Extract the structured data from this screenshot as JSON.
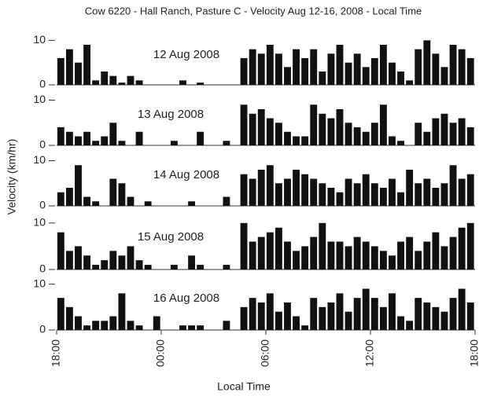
{
  "title": "Cow 6220 - Hall Ranch, Pasture C - Velocity Aug 12-16, 2008 - Local Time",
  "ylabel": "Velocity (km/hr)",
  "xlabel": "Local Time",
  "chart_data": [
    {
      "type": "bar",
      "annotation": "12 Aug 2008",
      "color": "#111111",
      "x": [
        18,
        18.5,
        19,
        19.5,
        20,
        20.5,
        21,
        21.5,
        22,
        22.5,
        23,
        23.5,
        24,
        24.5,
        25,
        25.5,
        26,
        26.5,
        27,
        27.5,
        28,
        28.5,
        29,
        29.5,
        30,
        30.5,
        31,
        31.5,
        32,
        32.5,
        33,
        33.5,
        34,
        34.5,
        35,
        35.5,
        36,
        36.5,
        37,
        37.5,
        38,
        38.5,
        39,
        39.5,
        40,
        40.5,
        41,
        41.5
      ],
      "values": [
        6,
        8,
        5,
        9,
        1,
        3,
        2,
        0.5,
        2,
        1,
        0,
        0,
        0,
        0,
        1,
        0,
        0.5,
        0,
        0,
        0,
        0,
        6,
        8,
        7,
        9,
        7,
        4,
        8,
        6,
        8,
        3,
        7,
        9,
        5,
        7,
        4,
        6,
        9,
        5,
        3,
        1,
        8,
        10,
        7,
        4,
        9,
        8,
        6
      ],
      "xlim": [
        18,
        42
      ],
      "ylim": [
        0,
        12
      ],
      "yticks": [
        0,
        10
      ]
    },
    {
      "type": "bar",
      "annotation": "13 Aug 2008",
      "color": "#111111",
      "x": [
        18,
        18.5,
        19,
        19.5,
        20,
        20.5,
        21,
        21.5,
        22,
        22.5,
        23,
        23.5,
        24,
        24.5,
        25,
        25.5,
        26,
        26.5,
        27,
        27.5,
        28,
        28.5,
        29,
        29.5,
        30,
        30.5,
        31,
        31.5,
        32,
        32.5,
        33,
        33.5,
        34,
        34.5,
        35,
        35.5,
        36,
        36.5,
        37,
        37.5,
        38,
        38.5,
        39,
        39.5,
        40,
        40.5,
        41,
        41.5
      ],
      "values": [
        4,
        3,
        2,
        3,
        1,
        2,
        5,
        1,
        0,
        3,
        0,
        0,
        0,
        1,
        0,
        0,
        3,
        0,
        0,
        1,
        0,
        9,
        7,
        8,
        6,
        5,
        3,
        2,
        2,
        9,
        7,
        6,
        8,
        5,
        4,
        3,
        5,
        9,
        2,
        1,
        0,
        5,
        3,
        6,
        7,
        5,
        6,
        4
      ],
      "xlim": [
        18,
        42
      ],
      "ylim": [
        0,
        12
      ],
      "yticks": [
        0,
        10
      ]
    },
    {
      "type": "bar",
      "annotation": "14 Aug 2008",
      "color": "#111111",
      "x": [
        18,
        18.5,
        19,
        19.5,
        20,
        20.5,
        21,
        21.5,
        22,
        22.5,
        23,
        23.5,
        24,
        24.5,
        25,
        25.5,
        26,
        26.5,
        27,
        27.5,
        28,
        28.5,
        29,
        29.5,
        30,
        30.5,
        31,
        31.5,
        32,
        32.5,
        33,
        33.5,
        34,
        34.5,
        35,
        35.5,
        36,
        36.5,
        37,
        37.5,
        38,
        38.5,
        39,
        39.5,
        40,
        40.5,
        41,
        41.5
      ],
      "values": [
        3,
        4,
        9,
        2,
        1,
        0,
        6,
        5,
        2,
        0,
        1,
        0,
        0,
        0,
        0,
        1,
        0,
        0,
        0,
        2,
        0,
        7,
        6,
        8,
        9,
        5,
        6,
        8,
        7,
        6,
        5,
        4,
        3,
        6,
        5,
        7,
        5,
        4,
        6,
        3,
        8,
        5,
        6,
        4,
        5,
        9,
        6,
        7
      ],
      "xlim": [
        18,
        42
      ],
      "ylim": [
        0,
        12
      ],
      "yticks": [
        0,
        10
      ]
    },
    {
      "type": "bar",
      "annotation": "15 Aug 2008",
      "color": "#111111",
      "x": [
        18,
        18.5,
        19,
        19.5,
        20,
        20.5,
        21,
        21.5,
        22,
        22.5,
        23,
        23.5,
        24,
        24.5,
        25,
        25.5,
        26,
        26.5,
        27,
        27.5,
        28,
        28.5,
        29,
        29.5,
        30,
        30.5,
        31,
        31.5,
        32,
        32.5,
        33,
        33.5,
        34,
        34.5,
        35,
        35.5,
        36,
        36.5,
        37,
        37.5,
        38,
        38.5,
        39,
        39.5,
        40,
        40.5,
        41,
        41.5
      ],
      "values": [
        8,
        4,
        5,
        3,
        1,
        2,
        4,
        3,
        5,
        2,
        1,
        0,
        0,
        1,
        0,
        3,
        1,
        0,
        0,
        1,
        0,
        10,
        6,
        7,
        8,
        9,
        6,
        4,
        5,
        7,
        10,
        6,
        6,
        5,
        7,
        6,
        5,
        4,
        3,
        6,
        7,
        4,
        6,
        8,
        5,
        7,
        9,
        10
      ],
      "xlim": [
        18,
        42
      ],
      "ylim": [
        0,
        12
      ],
      "yticks": [
        0,
        10
      ]
    },
    {
      "type": "bar",
      "annotation": "16 Aug 2008",
      "color": "#111111",
      "x": [
        18,
        18.5,
        19,
        19.5,
        20,
        20.5,
        21,
        21.5,
        22,
        22.5,
        23,
        23.5,
        24,
        24.5,
        25,
        25.5,
        26,
        26.5,
        27,
        27.5,
        28,
        28.5,
        29,
        29.5,
        30,
        30.5,
        31,
        31.5,
        32,
        32.5,
        33,
        33.5,
        34,
        34.5,
        35,
        35.5,
        36,
        36.5,
        37,
        37.5,
        38,
        38.5,
        39,
        39.5,
        40,
        40.5,
        41,
        41.5
      ],
      "values": [
        7,
        5,
        3,
        1,
        2,
        2,
        3,
        8,
        2,
        1,
        0,
        3,
        0,
        0,
        1,
        1,
        1,
        0,
        0,
        2,
        0,
        5,
        7,
        6,
        8,
        4,
        6,
        3,
        1,
        7,
        5,
        6,
        8,
        4,
        7,
        9,
        7,
        5,
        8,
        3,
        2,
        7,
        6,
        5,
        4,
        7,
        9,
        6
      ],
      "xlim": [
        18,
        42
      ],
      "ylim": [
        0,
        12
      ],
      "yticks": [
        0,
        10
      ],
      "xticks": [
        {
          "value": 18,
          "label": "18:00"
        },
        {
          "value": 24,
          "label": "00:00"
        },
        {
          "value": 30,
          "label": "06:00"
        },
        {
          "value": 36,
          "label": "12:00"
        },
        {
          "value": 42,
          "label": "18:00"
        }
      ]
    }
  ]
}
